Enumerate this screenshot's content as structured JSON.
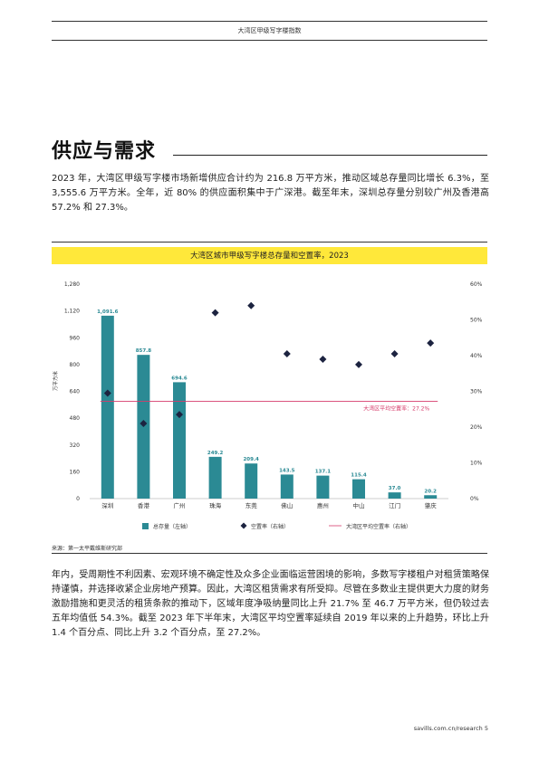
{
  "header": {
    "title": "大湾区甲级写字楼指数"
  },
  "section": {
    "title": "供应与需求",
    "intro": "2023 年，大湾区甲级写字楼市场新增供应合计约为 216.8 万平方米，推动区域总存量同比增长 6.3%，至 3,555.6 万平方米。全年，近 80% 的供应面积集中于广深港。截至年末，深圳总存量分别较广州及香港高 57.2% 和 27.3%。",
    "body": "年内，受周期性不利因素、宏观环境不确定性及众多企业面临运营困境的影响，多数写字楼租户对租赁策略保持谨慎，并选择收紧企业房地产预算。因此，大湾区租赁需求有所受抑。尽管在多数业主提供更大力度的财务激励措施和更灵活的租赁条款的推动下，区域年度净吸纳量同比上升 21.7% 至 46.7 万平方米，但仍较过去五年均值低 54.3%。截至 2023 年下半年末，大湾区平均空置率延续自 2019 年以来的上升趋势，环比上升 1.4 个百分点、同比上升 3.2 个百分点，至 27.2%。"
  },
  "chart_data": {
    "type": "bar",
    "title": "大湾区城市甲级写字楼总存量和空置率，2023",
    "categories": [
      "深圳",
      "香港",
      "广州",
      "珠海",
      "东莞",
      "佛山",
      "惠州",
      "中山",
      "江门",
      "肇庆"
    ],
    "series": [
      {
        "name": "总存量（左轴）",
        "type": "bar",
        "axis": "left",
        "color": "#2b8a94",
        "values": [
          1091.6,
          857.8,
          694.6,
          249.2,
          209.4,
          143.5,
          137.1,
          115.4,
          37.0,
          20.2
        ],
        "labels": [
          "1,091.6",
          "857.8",
          "694.6",
          "249.2",
          "209.4",
          "143.5",
          "137.1",
          "115.4",
          "37.0",
          "20.2"
        ]
      },
      {
        "name": "空置率（右轴）",
        "type": "scatter",
        "axis": "right",
        "marker": "diamond",
        "color": "#1c2340",
        "values": [
          29.5,
          21.0,
          23.5,
          52.0,
          54.0,
          40.5,
          39.0,
          37.5,
          40.5,
          43.5
        ]
      },
      {
        "name": "大湾区平均空置率（右轴）",
        "type": "line",
        "axis": "right",
        "color": "#d63c6b",
        "value": 27.2
      }
    ],
    "annotation": "大湾区平均空置率：27.2%",
    "ylabel": "万平方米",
    "ylim": [
      0,
      1280
    ],
    "yticks": [
      "0",
      "160",
      "320",
      "480",
      "640",
      "800",
      "960",
      "1,120",
      "1,280"
    ],
    "y2lim": [
      0,
      60
    ],
    "y2ticks": [
      "0%",
      "10%",
      "20%",
      "30%",
      "40%",
      "50%",
      "60%"
    ],
    "legend_position": "bottom",
    "grid": false
  },
  "source": "来源：第一太平戴维斯研究部",
  "footer": "savills.com.cn/research 5"
}
